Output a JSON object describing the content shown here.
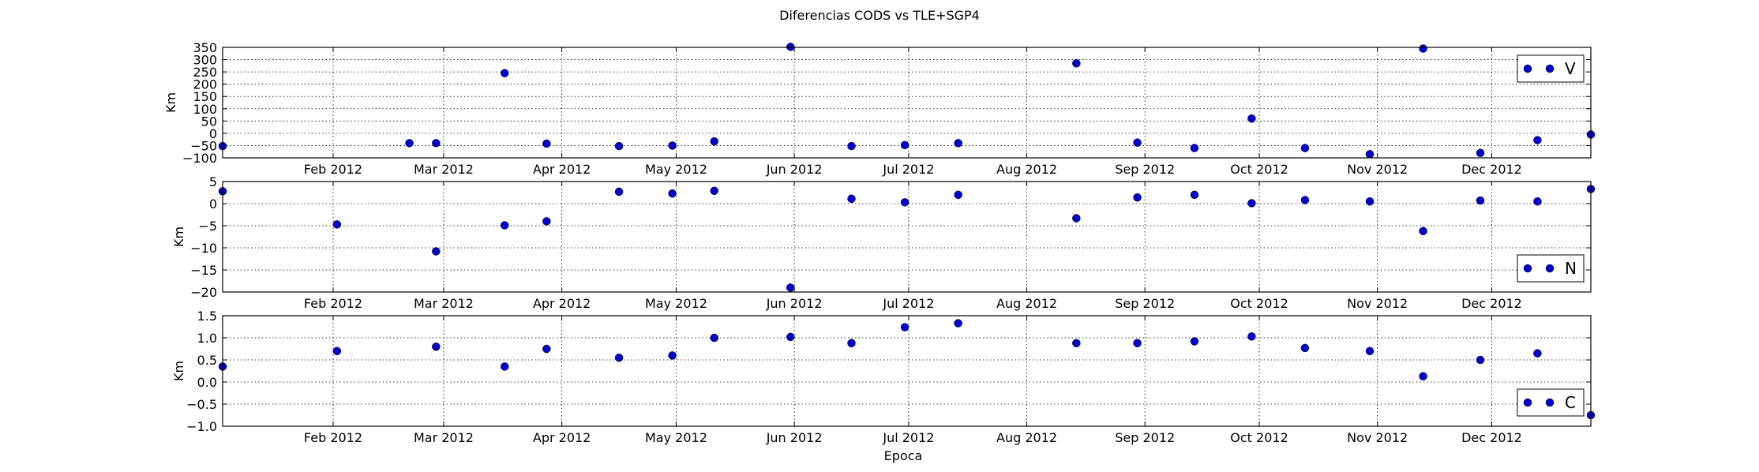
{
  "figure": {
    "title": "Diferencias CODS vs TLE+SGP4",
    "xlabel": "Epoca"
  },
  "chart_data": [
    {
      "type": "scatter",
      "ylabel": "Km",
      "legend": {
        "label": "V",
        "placement": "top-right"
      },
      "color": "#0000cc",
      "xlim": [
        "2012-01-03",
        "2012-12-27"
      ],
      "ylim": [
        -100,
        350
      ],
      "yticks": [
        -100,
        -50,
        0,
        50,
        100,
        150,
        200,
        250,
        300,
        350
      ],
      "yticklabels": [
        "−100",
        "−50",
        "0",
        "50",
        "100",
        "150",
        "200",
        "250",
        "300",
        "350"
      ],
      "xticks": [
        "2012-02-01",
        "2012-03-01",
        "2012-04-01",
        "2012-05-01",
        "2012-06-01",
        "2012-07-01",
        "2012-08-01",
        "2012-09-01",
        "2012-10-01",
        "2012-11-01",
        "2012-12-01"
      ],
      "xticklabels": [
        "Feb 2012",
        "Mar 2012",
        "Apr 2012",
        "May 2012",
        "Jun 2012",
        "Jul 2012",
        "Aug 2012",
        "Sep 2012",
        "Oct 2012",
        "Nov 2012",
        "Dec 2012"
      ],
      "grid": true,
      "points": [
        {
          "x": "2012-01-03",
          "y": -52
        },
        {
          "x": "2012-02-21",
          "y": -40
        },
        {
          "x": "2012-02-28",
          "y": -40
        },
        {
          "x": "2012-03-17",
          "y": 245
        },
        {
          "x": "2012-03-28",
          "y": -42
        },
        {
          "x": "2012-04-16",
          "y": -52
        },
        {
          "x": "2012-04-30",
          "y": -50
        },
        {
          "x": "2012-05-11",
          "y": -33
        },
        {
          "x": "2012-05-31",
          "y": 352
        },
        {
          "x": "2012-06-16",
          "y": -52
        },
        {
          "x": "2012-06-30",
          "y": -48
        },
        {
          "x": "2012-07-14",
          "y": -40
        },
        {
          "x": "2012-08-14",
          "y": 285
        },
        {
          "x": "2012-08-30",
          "y": -38
        },
        {
          "x": "2012-09-14",
          "y": -60
        },
        {
          "x": "2012-09-29",
          "y": 60
        },
        {
          "x": "2012-10-13",
          "y": -60
        },
        {
          "x": "2012-10-30",
          "y": -85
        },
        {
          "x": "2012-11-13",
          "y": 345
        },
        {
          "x": "2012-11-28",
          "y": -80
        },
        {
          "x": "2012-12-13",
          "y": -28
        },
        {
          "x": "2012-12-27",
          "y": -5
        }
      ]
    },
    {
      "type": "scatter",
      "ylabel": "Km",
      "legend": {
        "label": "N",
        "placement": "bottom-right"
      },
      "color": "#0000cc",
      "xlim": [
        "2012-01-03",
        "2012-12-27"
      ],
      "ylim": [
        -20,
        5
      ],
      "yticks": [
        -20,
        -15,
        -10,
        -5,
        0,
        5
      ],
      "yticklabels": [
        "−20",
        "−15",
        "−10",
        "−5",
        "0",
        "5"
      ],
      "xticks": [
        "2012-02-01",
        "2012-03-01",
        "2012-04-01",
        "2012-05-01",
        "2012-06-01",
        "2012-07-01",
        "2012-08-01",
        "2012-09-01",
        "2012-10-01",
        "2012-11-01",
        "2012-12-01"
      ],
      "xticklabels": [
        "Feb 2012",
        "Mar 2012",
        "Apr 2012",
        "May 2012",
        "Jun 2012",
        "Jul 2012",
        "Aug 2012",
        "Sep 2012",
        "Oct 2012",
        "Nov 2012",
        "Dec 2012"
      ],
      "grid": true,
      "points": [
        {
          "x": "2012-01-03",
          "y": 2.8
        },
        {
          "x": "2012-02-02",
          "y": -4.7
        },
        {
          "x": "2012-02-28",
          "y": -10.8
        },
        {
          "x": "2012-03-17",
          "y": -4.9
        },
        {
          "x": "2012-03-28",
          "y": -4.0
        },
        {
          "x": "2012-04-16",
          "y": 2.7
        },
        {
          "x": "2012-04-30",
          "y": 2.3
        },
        {
          "x": "2012-05-11",
          "y": 2.9
        },
        {
          "x": "2012-05-31",
          "y": -19.0
        },
        {
          "x": "2012-06-16",
          "y": 1.1
        },
        {
          "x": "2012-06-30",
          "y": 0.3
        },
        {
          "x": "2012-07-14",
          "y": 2.0
        },
        {
          "x": "2012-08-14",
          "y": -3.3
        },
        {
          "x": "2012-08-30",
          "y": 1.4
        },
        {
          "x": "2012-09-14",
          "y": 2.0
        },
        {
          "x": "2012-09-29",
          "y": 0.1
        },
        {
          "x": "2012-10-13",
          "y": 0.8
        },
        {
          "x": "2012-10-30",
          "y": 0.5
        },
        {
          "x": "2012-11-13",
          "y": -6.2
        },
        {
          "x": "2012-11-28",
          "y": 0.7
        },
        {
          "x": "2012-12-13",
          "y": 0.5
        },
        {
          "x": "2012-12-27",
          "y": 3.3
        }
      ]
    },
    {
      "type": "scatter",
      "ylabel": "Km",
      "legend": {
        "label": "C",
        "placement": "bottom-right"
      },
      "color": "#0000cc",
      "xlim": [
        "2012-01-03",
        "2012-12-27"
      ],
      "ylim": [
        -1.0,
        1.5
      ],
      "yticks": [
        -1.0,
        -0.5,
        0.0,
        0.5,
        1.0,
        1.5
      ],
      "yticklabels": [
        "−1.0",
        "−0.5",
        "0.0",
        "0.5",
        "1.0",
        "1.5"
      ],
      "xticks": [
        "2012-02-01",
        "2012-03-01",
        "2012-04-01",
        "2012-05-01",
        "2012-06-01",
        "2012-07-01",
        "2012-08-01",
        "2012-09-01",
        "2012-10-01",
        "2012-11-01",
        "2012-12-01"
      ],
      "xticklabels": [
        "Feb 2012",
        "Mar 2012",
        "Apr 2012",
        "May 2012",
        "Jun 2012",
        "Jul 2012",
        "Aug 2012",
        "Sep 2012",
        "Oct 2012",
        "Nov 2012",
        "Dec 2012"
      ],
      "grid": true,
      "points": [
        {
          "x": "2012-01-03",
          "y": 0.35
        },
        {
          "x": "2012-02-02",
          "y": 0.7
        },
        {
          "x": "2012-02-28",
          "y": 0.8
        },
        {
          "x": "2012-03-17",
          "y": 0.35
        },
        {
          "x": "2012-03-28",
          "y": 0.75
        },
        {
          "x": "2012-04-16",
          "y": 0.55
        },
        {
          "x": "2012-04-30",
          "y": 0.6
        },
        {
          "x": "2012-05-11",
          "y": 1.0
        },
        {
          "x": "2012-05-31",
          "y": 1.02
        },
        {
          "x": "2012-06-16",
          "y": 0.88
        },
        {
          "x": "2012-06-30",
          "y": 1.24
        },
        {
          "x": "2012-07-14",
          "y": 1.33
        },
        {
          "x": "2012-08-14",
          "y": 0.88
        },
        {
          "x": "2012-08-30",
          "y": 0.88
        },
        {
          "x": "2012-09-14",
          "y": 0.92
        },
        {
          "x": "2012-09-29",
          "y": 1.03
        },
        {
          "x": "2012-10-13",
          "y": 0.77
        },
        {
          "x": "2012-10-30",
          "y": 0.7
        },
        {
          "x": "2012-11-13",
          "y": 0.13
        },
        {
          "x": "2012-11-28",
          "y": 0.5
        },
        {
          "x": "2012-12-13",
          "y": 0.65
        },
        {
          "x": "2012-12-27",
          "y": -0.75
        }
      ]
    }
  ]
}
